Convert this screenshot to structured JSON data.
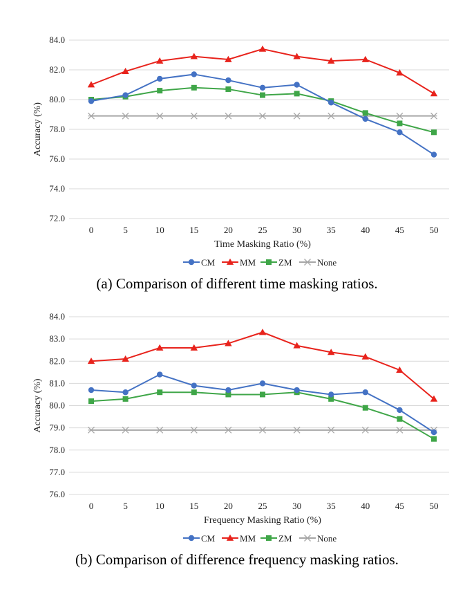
{
  "chart_data": [
    {
      "type": "line",
      "x": [
        0,
        5,
        10,
        15,
        20,
        25,
        30,
        35,
        40,
        45,
        50
      ],
      "xlabel": "Time Masking Ratio (%)",
      "ylabel": "Accuracy (%)",
      "ylim": [
        72.0,
        84.0
      ],
      "yticks": [
        "72.0",
        "74.0",
        "76.0",
        "78.0",
        "80.0",
        "82.0",
        "84.0"
      ],
      "grid": "horizontal",
      "legend": "bottom",
      "caption": "(a)  Comparison of different time masking ratios.",
      "series": [
        {
          "name": "CM",
          "color": "#4472c4",
          "marker": "circle",
          "values": [
            79.9,
            80.3,
            81.4,
            81.7,
            81.3,
            80.8,
            81.0,
            79.8,
            78.7,
            77.8,
            76.3
          ]
        },
        {
          "name": "MM",
          "color": "#e8231c",
          "marker": "triangle",
          "values": [
            81.0,
            81.9,
            82.6,
            82.9,
            82.7,
            83.4,
            82.9,
            82.6,
            82.7,
            81.8,
            80.4
          ]
        },
        {
          "name": "ZM",
          "color": "#3fa648",
          "marker": "square",
          "values": [
            80.0,
            80.2,
            80.6,
            80.8,
            80.7,
            80.3,
            80.4,
            79.9,
            79.1,
            78.4,
            77.8
          ]
        },
        {
          "name": "None",
          "color": "#a6a6a6",
          "marker": "star",
          "values": [
            78.9,
            78.9,
            78.9,
            78.9,
            78.9,
            78.9,
            78.9,
            78.9,
            78.9,
            78.9,
            78.9
          ]
        }
      ]
    },
    {
      "type": "line",
      "x": [
        0,
        5,
        10,
        15,
        20,
        25,
        30,
        35,
        40,
        45,
        50
      ],
      "xlabel": "Frequency Masking Ratio (%)",
      "ylabel": "Accuracy (%)",
      "ylim": [
        76.0,
        84.0
      ],
      "yticks": [
        "76.0",
        "77.0",
        "78.0",
        "79.0",
        "80.0",
        "81.0",
        "82.0",
        "83.0",
        "84.0"
      ],
      "grid": "horizontal",
      "legend": "bottom",
      "caption": "(b)  Comparison of difference frequency masking ratios.",
      "series": [
        {
          "name": "CM",
          "color": "#4472c4",
          "marker": "circle",
          "values": [
            80.7,
            80.6,
            81.4,
            80.9,
            80.7,
            81.0,
            80.7,
            80.5,
            80.6,
            79.8,
            78.8
          ]
        },
        {
          "name": "MM",
          "color": "#e8231c",
          "marker": "triangle",
          "values": [
            82.0,
            82.1,
            82.6,
            82.6,
            82.8,
            83.3,
            82.7,
            82.4,
            82.2,
            81.6,
            80.3
          ]
        },
        {
          "name": "ZM",
          "color": "#3fa648",
          "marker": "square",
          "values": [
            80.2,
            80.3,
            80.6,
            80.6,
            80.5,
            80.5,
            80.6,
            80.3,
            79.9,
            79.4,
            78.5
          ]
        },
        {
          "name": "None",
          "color": "#a6a6a6",
          "marker": "star",
          "values": [
            78.9,
            78.9,
            78.9,
            78.9,
            78.9,
            78.9,
            78.9,
            78.9,
            78.9,
            78.9,
            78.9
          ]
        }
      ]
    }
  ]
}
